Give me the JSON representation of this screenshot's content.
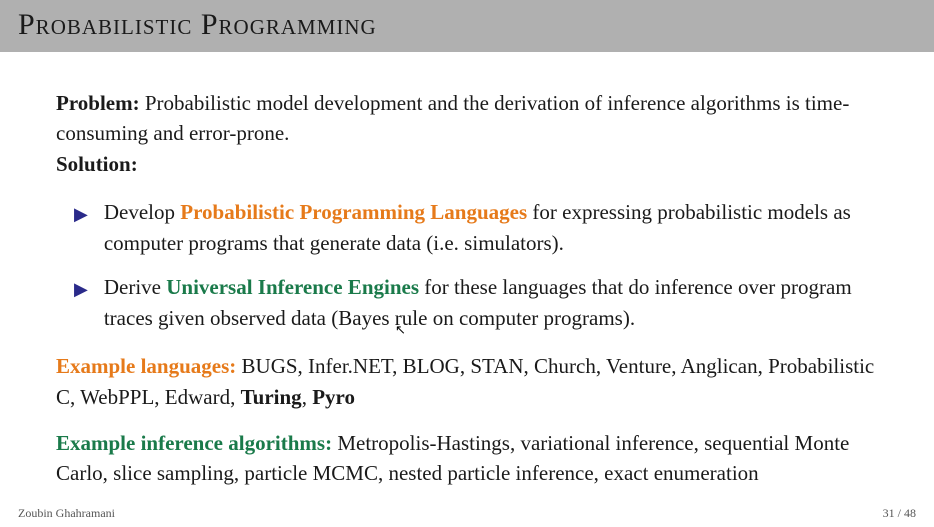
{
  "title": "Probabilistic Programming",
  "problem": {
    "label": "Problem:",
    "text": " Probabilistic model development and the derivation of inference algorithms is time-consuming and error-prone."
  },
  "solution": {
    "label": "Solution:"
  },
  "bullets": [
    {
      "pre": "Develop ",
      "highlight": "Probabilistic Programming Languages",
      "highlight_color": "#e67a1a",
      "post": " for expressing probabilistic models as computer programs that generate data (i.e. simulators)."
    },
    {
      "pre": "Derive ",
      "highlight": "Universal Inference Engines",
      "highlight_color": "#1a7a4a",
      "post": " for these languages that do inference over program traces given observed data (Bayes rule on computer programs)."
    }
  ],
  "example_languages": {
    "label": "Example languages:",
    "label_color": "#e67a1a",
    "text_pre": " BUGS, Infer.NET, BLOG, STAN, Church, Venture, Anglican, Probabilistic C, WebPPL, Edward, ",
    "bold1": "Turing",
    "mid": ", ",
    "bold2": "Pyro"
  },
  "example_algorithms": {
    "label": "Example inference algorithms:",
    "label_color": "#1a7a4a",
    "text": " Metropolis-Hastings, variational inference, sequential Monte Carlo, slice sampling, particle MCMC, nested particle inference, exact enumeration"
  },
  "footer": {
    "author": "Zoubin Ghahramani",
    "page": "31 / 48"
  },
  "colors": {
    "title_bg": "#b0b0b0",
    "text": "#1a1a1a",
    "bullet_marker": "#2a2a8a",
    "background": "#ffffff"
  },
  "typography": {
    "title_fontsize": 30,
    "body_fontsize": 21,
    "footer_fontsize": 12,
    "font_family": "Georgia, Times New Roman, serif"
  }
}
